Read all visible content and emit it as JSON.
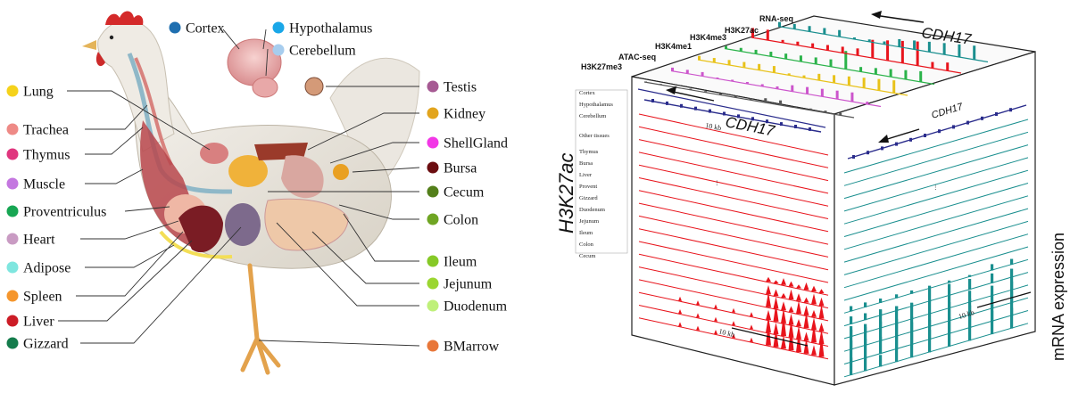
{
  "organ_legend": {
    "top": [
      {
        "name": "Cortex",
        "color": "#1f6fb0"
      },
      {
        "name": "Hypothalamus",
        "color": "#1aa7e8"
      },
      {
        "name": "Cerebellum",
        "color": "#a7cdee"
      }
    ],
    "left": [
      {
        "name": "Lung",
        "color": "#f5d21b"
      },
      {
        "name": "Trachea",
        "color": "#ee8a86"
      },
      {
        "name": "Thymus",
        "color": "#e0367e"
      },
      {
        "name": "Muscle",
        "color": "#c477e0"
      },
      {
        "name": "Proventriculus",
        "color": "#17a653"
      },
      {
        "name": "Heart",
        "color": "#c99bc3"
      },
      {
        "name": "Adipose",
        "color": "#7fe6df"
      },
      {
        "name": "Spleen",
        "color": "#f5962d"
      },
      {
        "name": "Liver",
        "color": "#cc1c26"
      },
      {
        "name": "Gizzard",
        "color": "#147c4c"
      }
    ],
    "right": [
      {
        "name": "Testis",
        "color": "#a65a93"
      },
      {
        "name": "Kidney",
        "color": "#e2a41d"
      },
      {
        "name": "ShellGland",
        "color": "#f237e6"
      },
      {
        "name": "Bursa",
        "color": "#6b0d10"
      },
      {
        "name": "Cecum",
        "color": "#537f1a"
      },
      {
        "name": "Colon",
        "color": "#6fa523"
      },
      {
        "name": "Ileum",
        "color": "#86c927"
      },
      {
        "name": "Jejunum",
        "color": "#9bd631"
      },
      {
        "name": "Duodenum",
        "color": "#bff07a"
      },
      {
        "name": "BMarrow",
        "color": "#e8773a"
      }
    ]
  },
  "cube": {
    "gene": "CDH17",
    "scale_label": "10 kb",
    "left_axis_label": "H3K27ac",
    "right_axis_label": "mRNA expression",
    "marks": [
      "H3K27me3",
      "ATAC-seq",
      "H3K4me1",
      "H3K4me3",
      "H3K27ac",
      "RNA-seq"
    ],
    "tissues": [
      "Cortex",
      "Hypothalamus",
      "Cerebellum",
      "Other tissues",
      "Thymus",
      "Bursa",
      "Liver",
      "Provent",
      "Gizzard",
      "Duodenum",
      "Jejunum",
      "Ileum",
      "Colon",
      "Cecum"
    ],
    "colors": {
      "h3k27ac": "#e8141c",
      "rna": "#1a8f8f",
      "gene": "#2a2c8c"
    }
  }
}
